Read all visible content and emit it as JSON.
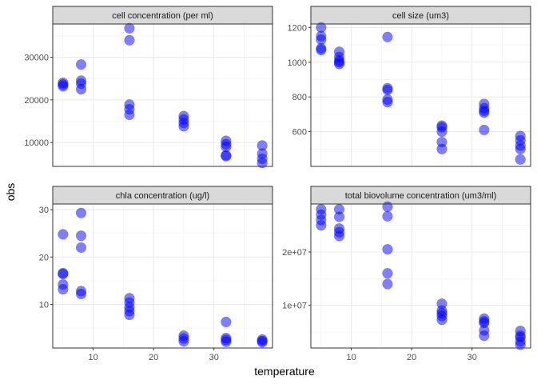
{
  "chart_data": {
    "type": "scatter",
    "xlabel": "temperature",
    "ylabel": "obs",
    "point_color": "#0000ff",
    "point_opacity": 0.5,
    "grid": true,
    "x_ticks": [
      10,
      20,
      30
    ],
    "xlim": [
      3.3,
      39.7
    ],
    "panels": [
      {
        "strip": "cell concentration (per ml)",
        "ylim": [
          4400,
          37800
        ],
        "y_ticks": [
          10000,
          20000,
          30000
        ],
        "y_tick_labels": [
          "10000",
          "20000",
          "30000"
        ],
        "points": [
          {
            "x": 5,
            "y": 23200
          },
          {
            "x": 5,
            "y": 23600
          },
          {
            "x": 5,
            "y": 24000
          },
          {
            "x": 8,
            "y": 22500
          },
          {
            "x": 8,
            "y": 23800
          },
          {
            "x": 8,
            "y": 24500
          },
          {
            "x": 8,
            "y": 28300
          },
          {
            "x": 16,
            "y": 16500
          },
          {
            "x": 16,
            "y": 17800
          },
          {
            "x": 16,
            "y": 18900
          },
          {
            "x": 16,
            "y": 34000
          },
          {
            "x": 16,
            "y": 36800
          },
          {
            "x": 25,
            "y": 13800
          },
          {
            "x": 25,
            "y": 14600
          },
          {
            "x": 25,
            "y": 15400
          },
          {
            "x": 25,
            "y": 16200
          },
          {
            "x": 32,
            "y": 6800
          },
          {
            "x": 32,
            "y": 7000
          },
          {
            "x": 32,
            "y": 9000
          },
          {
            "x": 32,
            "y": 9600
          },
          {
            "x": 32,
            "y": 10400
          },
          {
            "x": 38,
            "y": 5200
          },
          {
            "x": 38,
            "y": 6200
          },
          {
            "x": 38,
            "y": 7400
          },
          {
            "x": 38,
            "y": 9300
          }
        ]
      },
      {
        "strip": "cell size (um3)",
        "ylim": [
          400,
          1220
        ],
        "y_ticks": [
          600,
          800,
          1000,
          1200
        ],
        "y_tick_labels": [
          "600",
          "800",
          "1000",
          "1200"
        ],
        "points": [
          {
            "x": 5,
            "y": 1070
          },
          {
            "x": 5,
            "y": 1080
          },
          {
            "x": 5,
            "y": 1130
          },
          {
            "x": 5,
            "y": 1150
          },
          {
            "x": 5,
            "y": 1200
          },
          {
            "x": 8,
            "y": 990
          },
          {
            "x": 8,
            "y": 1000
          },
          {
            "x": 8,
            "y": 1010
          },
          {
            "x": 8,
            "y": 1030
          },
          {
            "x": 8,
            "y": 1060
          },
          {
            "x": 16,
            "y": 770
          },
          {
            "x": 16,
            "y": 785
          },
          {
            "x": 16,
            "y": 840
          },
          {
            "x": 16,
            "y": 850
          },
          {
            "x": 16,
            "y": 1145
          },
          {
            "x": 25,
            "y": 500
          },
          {
            "x": 25,
            "y": 540
          },
          {
            "x": 25,
            "y": 600
          },
          {
            "x": 25,
            "y": 625
          },
          {
            "x": 25,
            "y": 635
          },
          {
            "x": 32,
            "y": 610
          },
          {
            "x": 32,
            "y": 710
          },
          {
            "x": 32,
            "y": 720
          },
          {
            "x": 32,
            "y": 735
          },
          {
            "x": 32,
            "y": 760
          },
          {
            "x": 38,
            "y": 440
          },
          {
            "x": 38,
            "y": 500
          },
          {
            "x": 38,
            "y": 520
          },
          {
            "x": 38,
            "y": 550
          },
          {
            "x": 38,
            "y": 575
          }
        ]
      },
      {
        "strip": "chla concentration (ug/l)",
        "ylim": [
          0.8,
          31.2
        ],
        "y_ticks": [
          10,
          20,
          30
        ],
        "y_tick_labels": [
          "10",
          "20",
          "30"
        ],
        "points": [
          {
            "x": 5,
            "y": 13.2
          },
          {
            "x": 5,
            "y": 14.2
          },
          {
            "x": 5,
            "y": 16.4
          },
          {
            "x": 5,
            "y": 16.6
          },
          {
            "x": 5,
            "y": 24.8
          },
          {
            "x": 8,
            "y": 12.2
          },
          {
            "x": 8,
            "y": 12.8
          },
          {
            "x": 8,
            "y": 22.0
          },
          {
            "x": 8,
            "y": 24.5
          },
          {
            "x": 8,
            "y": 29.3
          },
          {
            "x": 16,
            "y": 7.8
          },
          {
            "x": 16,
            "y": 8.6
          },
          {
            "x": 16,
            "y": 9.4
          },
          {
            "x": 16,
            "y": 10.4
          },
          {
            "x": 16,
            "y": 11.3
          },
          {
            "x": 25,
            "y": 2.2
          },
          {
            "x": 25,
            "y": 2.8
          },
          {
            "x": 25,
            "y": 3.4
          },
          {
            "x": 32,
            "y": 2.1
          },
          {
            "x": 32,
            "y": 2.5
          },
          {
            "x": 32,
            "y": 2.9
          },
          {
            "x": 32,
            "y": 6.3
          },
          {
            "x": 38,
            "y": 2.0
          },
          {
            "x": 38,
            "y": 2.3
          },
          {
            "x": 38,
            "y": 2.6
          }
        ]
      },
      {
        "strip": "total biovolume concentration (um3/ml)",
        "ylim": [
          2000000,
          29000000
        ],
        "y_ticks": [
          10000000,
          20000000
        ],
        "y_tick_labels": [
          "1e+07",
          "2e+07"
        ],
        "points": [
          {
            "x": 5,
            "y": 25000000
          },
          {
            "x": 5,
            "y": 26000000
          },
          {
            "x": 5,
            "y": 27000000
          },
          {
            "x": 5,
            "y": 28000000
          },
          {
            "x": 8,
            "y": 23000000
          },
          {
            "x": 8,
            "y": 23700000
          },
          {
            "x": 8,
            "y": 24400000
          },
          {
            "x": 8,
            "y": 26600000
          },
          {
            "x": 8,
            "y": 28000000
          },
          {
            "x": 16,
            "y": 14000000
          },
          {
            "x": 16,
            "y": 16000000
          },
          {
            "x": 16,
            "y": 20500000
          },
          {
            "x": 16,
            "y": 26700000
          },
          {
            "x": 16,
            "y": 28500000
          },
          {
            "x": 25,
            "y": 7300000
          },
          {
            "x": 25,
            "y": 8000000
          },
          {
            "x": 25,
            "y": 8500000
          },
          {
            "x": 25,
            "y": 9000000
          },
          {
            "x": 25,
            "y": 10300000
          },
          {
            "x": 32,
            "y": 4300000
          },
          {
            "x": 32,
            "y": 5300000
          },
          {
            "x": 32,
            "y": 6700000
          },
          {
            "x": 32,
            "y": 7000000
          },
          {
            "x": 32,
            "y": 7500000
          },
          {
            "x": 38,
            "y": 2600000
          },
          {
            "x": 38,
            "y": 3200000
          },
          {
            "x": 38,
            "y": 4000000
          },
          {
            "x": 38,
            "y": 4300000
          },
          {
            "x": 38,
            "y": 5200000
          }
        ]
      }
    ]
  }
}
